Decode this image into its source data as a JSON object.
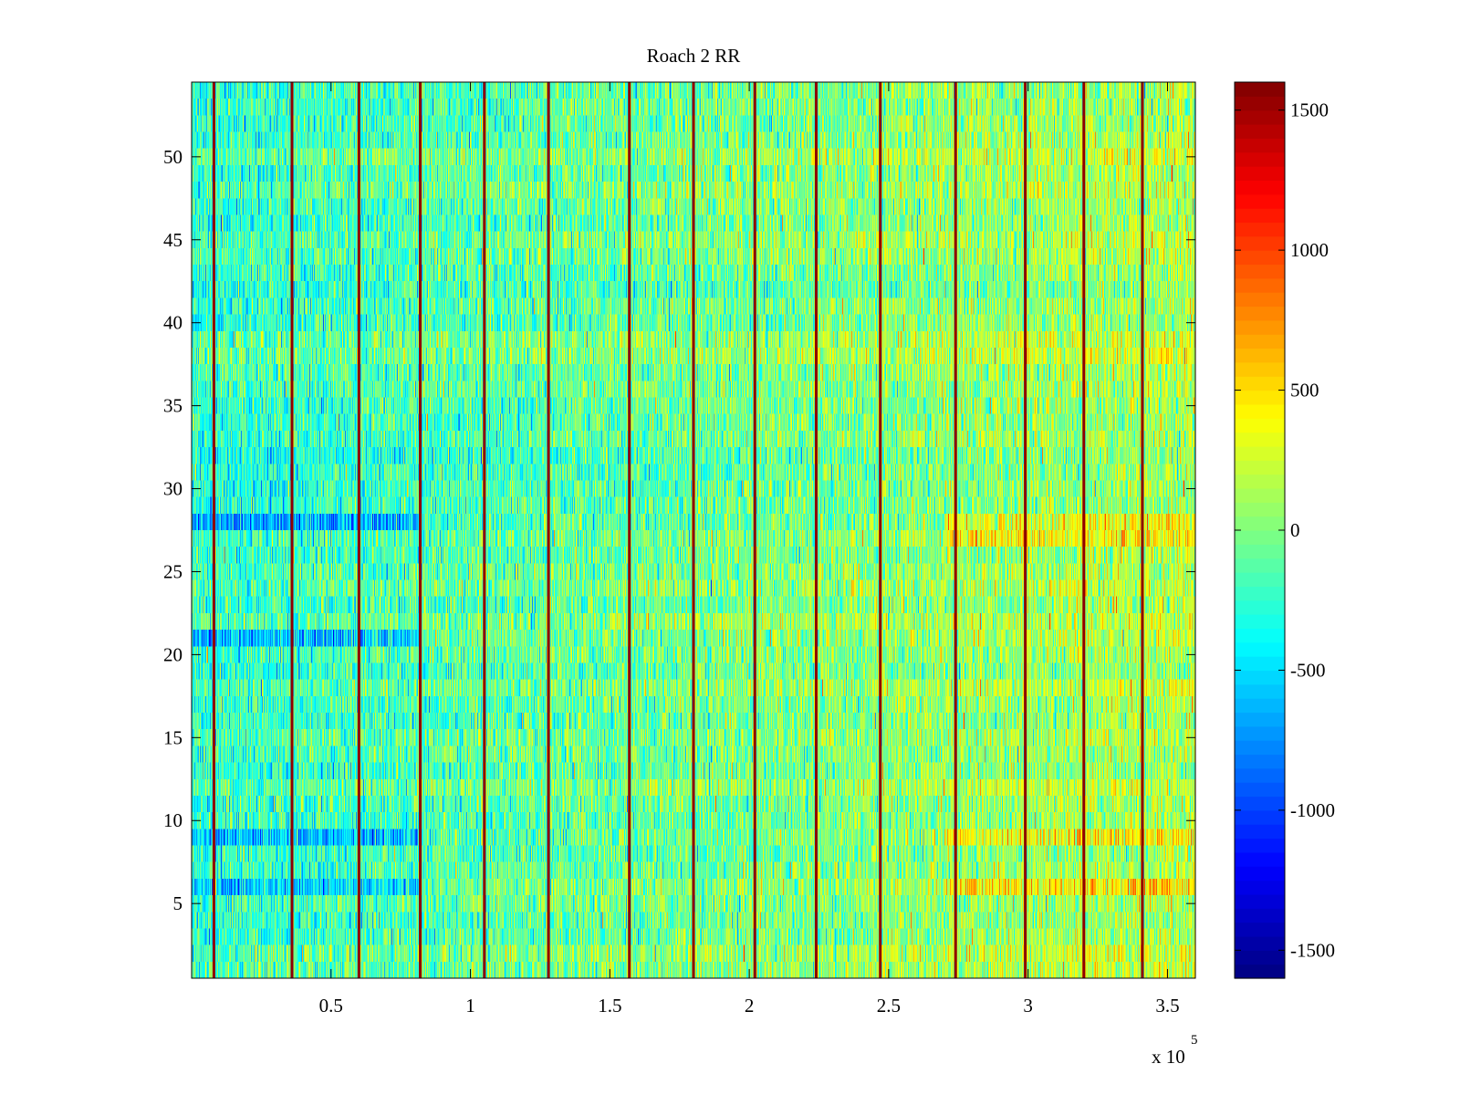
{
  "chart_data": {
    "type": "heatmap",
    "title": "Roach 2 RR",
    "xlabel": "",
    "ylabel": "",
    "x_exponent_label": "x 10",
    "x_exponent_power": "5",
    "xlim": [
      0,
      3.6
    ],
    "ylim": [
      0.5,
      54.5
    ],
    "x_units_scale": 100000,
    "rows": 54,
    "xticks": [
      0.5,
      1,
      1.5,
      2,
      2.5,
      3,
      3.5
    ],
    "xtick_labels": [
      "0.5",
      "1",
      "1.5",
      "2",
      "2.5",
      "3",
      "3.5"
    ],
    "yticks": [
      5,
      10,
      15,
      20,
      25,
      30,
      35,
      40,
      45,
      50
    ],
    "ytick_labels": [
      "5",
      "10",
      "15",
      "20",
      "25",
      "30",
      "35",
      "40",
      "45",
      "50"
    ],
    "colorbar": {
      "colormap": "jet",
      "clim": [
        -1600,
        1600
      ],
      "ticks": [
        -1500,
        -1000,
        -500,
        0,
        500,
        1000,
        1500
      ],
      "tick_labels": [
        "-1500",
        "-1000",
        "-500",
        "0",
        "500",
        "1000",
        "1500"
      ]
    },
    "description_of_values": {
      "baseline_value": -100,
      "trend_left_to_right": [
        -250,
        150
      ],
      "noise_std": 230,
      "high_value_vertical_lines_x": [
        0.08,
        0.36,
        0.6,
        0.82,
        1.05,
        1.28,
        1.57,
        1.8,
        2.02,
        2.24,
        2.47,
        2.74,
        2.99,
        3.2,
        3.41
      ],
      "high_value_line_magnitude": 1550,
      "low_value_rows": [
        6,
        9,
        21,
        28
      ],
      "low_value_rows_x_extent": [
        0,
        0.82
      ],
      "higher_value_rows_right_side": [
        6,
        9,
        27,
        28
      ]
    }
  }
}
